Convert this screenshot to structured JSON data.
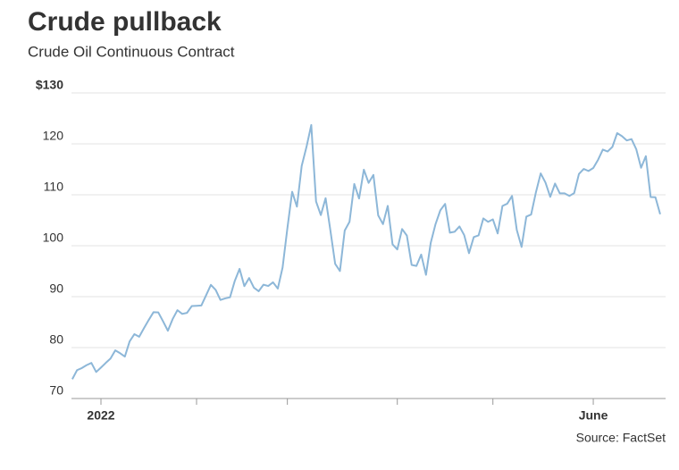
{
  "chart_data": {
    "type": "line",
    "title": "Crude pullback",
    "subtitle": "Crude Oil Continuous Contract",
    "source": "Source: FactSet",
    "categories": [
      null,
      null,
      null,
      null,
      null,
      null,
      "2022",
      null,
      null,
      null,
      null,
      null,
      null,
      null,
      null,
      null,
      null,
      null,
      null,
      null,
      null,
      null,
      null,
      null,
      null,
      null,
      null,
      null,
      null,
      null,
      null,
      null,
      null,
      null,
      null,
      null,
      null,
      null,
      null,
      null,
      null,
      null,
      null,
      null,
      null,
      null,
      null,
      null,
      null,
      null,
      null,
      null,
      null,
      null,
      null,
      null,
      null,
      null,
      null,
      null,
      null,
      null,
      null,
      null,
      null,
      null,
      null,
      null,
      null,
      null,
      null,
      null,
      null,
      null,
      null,
      null,
      null,
      null,
      null,
      null,
      null,
      null,
      null,
      null,
      null,
      null,
      null,
      null,
      null,
      null,
      null,
      null,
      null,
      null,
      null,
      null,
      null,
      null,
      null,
      null,
      null,
      null,
      null,
      null,
      null,
      null,
      null,
      null,
      null,
      "June",
      null,
      null,
      null,
      null,
      null,
      null,
      null,
      null,
      null,
      null,
      null,
      null,
      null,
      null
    ],
    "xticks": [
      6,
      26,
      45,
      68,
      88,
      109
    ],
    "series": [
      {
        "name": "Crude Oil",
        "color": "#8db7d8",
        "values": [
          73.79,
          75.57,
          75.98,
          76.56,
          76.99,
          75.21,
          76.08,
          76.99,
          77.85,
          79.46,
          78.9,
          78.23,
          81.22,
          82.64,
          82.12,
          83.82,
          85.43,
          86.96,
          86.9,
          85.14,
          83.31,
          85.6,
          87.35,
          86.61,
          86.82,
          88.15,
          88.2,
          88.26,
          90.27,
          92.31,
          91.32,
          89.36,
          89.66,
          89.88,
          93.1,
          95.46,
          92.07,
          93.66,
          91.76,
          91.07,
          92.35,
          92.1,
          92.81,
          91.59,
          95.72,
          103.41,
          110.6,
          107.67,
          115.68,
          119.4,
          123.7,
          108.7,
          106.02,
          109.33,
          103.01,
          96.44,
          95.04,
          102.98,
          104.7,
          112.12,
          109.27,
          114.93,
          112.34,
          113.9,
          105.96,
          104.24,
          107.82,
          100.28,
          99.27,
          103.28,
          102.0,
          96.23,
          96.03,
          98.26,
          94.29,
          100.6,
          104.25,
          106.95,
          108.21,
          102.56,
          102.75,
          103.79,
          102.07,
          98.54,
          101.7,
          102.02,
          105.36,
          104.69,
          105.17,
          102.41,
          107.81,
          108.26,
          109.77,
          103.09,
          99.76,
          105.71,
          106.13,
          110.49,
          114.2,
          112.4,
          109.59,
          112.21,
          110.28,
          110.29,
          109.77,
          110.33,
          114.09,
          115.07,
          114.67,
          115.26,
          116.87,
          118.87,
          118.5,
          119.41,
          122.11,
          121.51,
          120.67,
          120.93,
          118.93,
          115.31,
          117.59,
          109.56,
          109.52,
          106.19
        ]
      }
    ],
    "ylim": [
      70,
      130
    ],
    "yticks": [
      70,
      80,
      90,
      100,
      110,
      120,
      {
        "value": 130,
        "label": "$130"
      }
    ],
    "grid": true
  }
}
